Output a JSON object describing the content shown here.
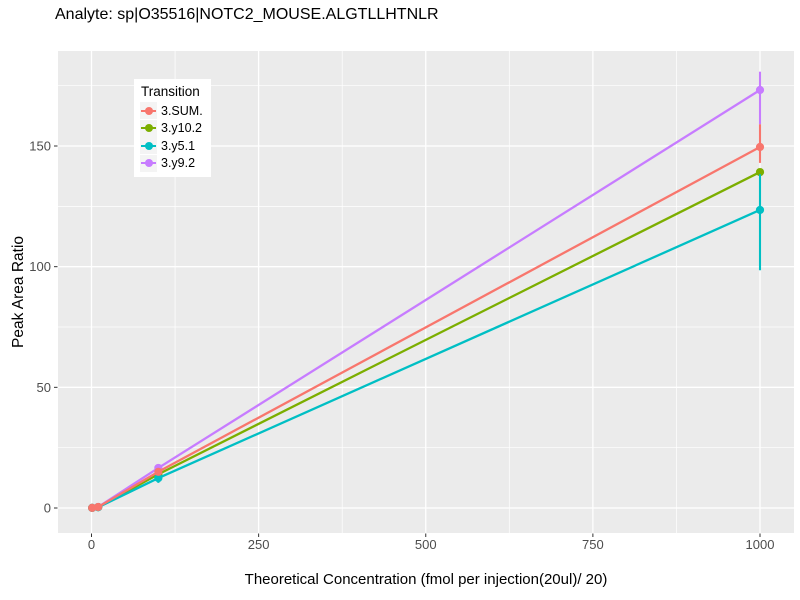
{
  "title": "Analyte: sp|O35516|NOTC2_MOUSE.ALGTLLHTNLR",
  "legend": {
    "title": "Transition"
  },
  "chart_data": {
    "type": "line",
    "title": "Analyte: sp|O35516|NOTC2_MOUSE.ALGTLLHTNLR",
    "xlabel": "Theoretical Concentration (fmol per injection(20ul)/ 20)",
    "ylabel": "Peak Area Ratio",
    "x": [
      1,
      10,
      100,
      1000
    ],
    "series": [
      {
        "name": "3.SUM.",
        "color": "#F8766D",
        "values": [
          0.05,
          0.4,
          15.0,
          149.6
        ],
        "errorbars": [
          {
            "x": 1000,
            "lo": 143.0,
            "hi": 159.0
          }
        ]
      },
      {
        "name": "3.y10.2",
        "color": "#7CAE00",
        "values": [
          0.05,
          0.35,
          14.0,
          139.2
        ],
        "errorbars": []
      },
      {
        "name": "3.y5.1",
        "color": "#00BFC4",
        "values": [
          0.04,
          0.3,
          12.4,
          123.5
        ],
        "errorbars": [
          {
            "x": 100,
            "lo": 10.4,
            "hi": 14.3
          },
          {
            "x": 1000,
            "lo": 98.5,
            "hi": 138.3
          }
        ]
      },
      {
        "name": "3.y9.2",
        "color": "#C77CFF",
        "values": [
          0.06,
          0.45,
          16.6,
          173.2
        ],
        "errorbars": [
          {
            "x": 1000,
            "lo": 159.0,
            "hi": 180.8
          }
        ]
      }
    ],
    "draw_order": [
      3,
      1,
      2,
      0
    ],
    "x_ticks": [
      0,
      250,
      500,
      750,
      1000
    ],
    "x_tick_labels": [
      "0",
      "250",
      "500",
      "750",
      "1000"
    ],
    "x_minor_gridlines": [
      125,
      375,
      625,
      875
    ],
    "y_ticks": [
      0,
      50,
      100,
      150
    ],
    "y_tick_labels": [
      "0",
      "50",
      "100",
      "150"
    ],
    "y_minor_gridlines": [
      25,
      75,
      125,
      175
    ],
    "xlim": [
      0,
      1000
    ],
    "ylim": [
      0,
      180
    ],
    "grid": "on",
    "legend_position": "inside-top-left",
    "panel_background": "#EBEBEB",
    "gridline_color": "#FFFFFF",
    "tick_label_color": "#4D4D4D"
  }
}
